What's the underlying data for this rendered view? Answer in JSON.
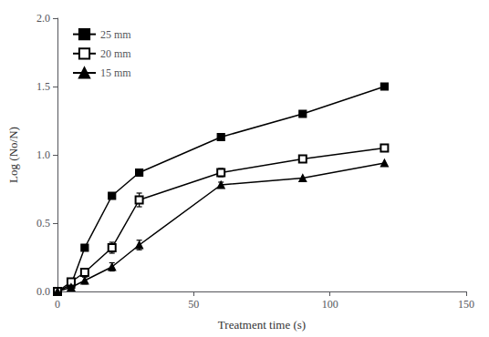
{
  "chart_data": {
    "type": "line",
    "x_label": "Treatment time (s)",
    "y_label": "Log (No/N)",
    "x": [
      0,
      5,
      10,
      20,
      30,
      60,
      90,
      120
    ],
    "series": [
      {
        "name": "25 mm",
        "color": "black",
        "marker": "square",
        "line_style": "solid",
        "values": [
          0.0,
          0.05,
          0.32,
          0.7,
          0.87,
          1.13,
          1.3,
          1.5
        ],
        "yerr": [
          0,
          0,
          0,
          0,
          0,
          0,
          0,
          0
        ]
      },
      {
        "name": "20 mm",
        "color": "black",
        "marker": "open_square",
        "line_style": "solid",
        "values": [
          0.0,
          0.07,
          0.14,
          0.32,
          0.67,
          0.87,
          0.97,
          1.05
        ],
        "yerr": [
          0,
          0.025,
          0.025,
          0.04,
          0.05,
          0.03,
          0,
          0
        ]
      },
      {
        "name": "15 mm",
        "color": "black",
        "marker": "triangle",
        "line_style": "solid",
        "values": [
          0.0,
          0.03,
          0.08,
          0.18,
          0.34,
          0.78,
          0.83,
          0.94
        ],
        "yerr": [
          0,
          0,
          0.025,
          0.03,
          0.035,
          0.02,
          0,
          0
        ]
      }
    ],
    "xlim": [
      0,
      150
    ],
    "ylim": [
      0.0,
      2.0
    ],
    "xticks": [
      0,
      50,
      100,
      150
    ],
    "yticks": [
      {
        "value": 0,
        "label": "0.0"
      },
      0.5,
      {
        "value": 1,
        "label": "1.0"
      },
      1.5,
      {
        "value": 2,
        "label": "2.0"
      }
    ],
    "grid": false,
    "legend": "upper left"
  }
}
